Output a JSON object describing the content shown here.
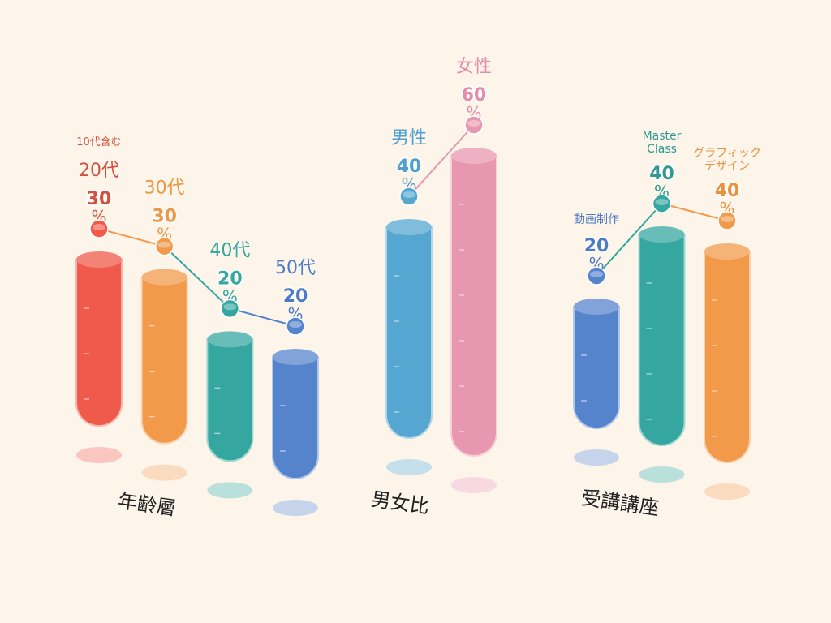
{
  "chart_data": [
    {
      "type": "bar",
      "title": "年齢層",
      "unit": "%",
      "bars": [
        {
          "pre": "10代含む",
          "label": "20代",
          "value": 30,
          "color": "#f05a4a",
          "text_color": "#d0523f"
        },
        {
          "label": "30代",
          "value": 30,
          "color": "#f2994a",
          "text_color": "#e89a48"
        },
        {
          "label": "40代",
          "value": 20,
          "color": "#35a7a0",
          "text_color": "#35a7a0"
        },
        {
          "label": "50代",
          "value": 20,
          "color": "#5584cc",
          "text_color": "#4e7cc4"
        }
      ]
    },
    {
      "type": "bar",
      "title": "男女比",
      "unit": "%",
      "bars": [
        {
          "label": "男性",
          "value": 40,
          "color": "#55a6d0",
          "text_color": "#4f9fd0"
        },
        {
          "label": "女性",
          "value": 60,
          "color": "#e897b0",
          "text_color": "#e48daa"
        }
      ]
    },
    {
      "type": "bar",
      "title": "受講講座",
      "unit": "%",
      "bars": [
        {
          "label": "動画制作",
          "value": 20,
          "color": "#5584cc",
          "text_color": "#4e7cc4"
        },
        {
          "label": "Master\nClass",
          "value": 40,
          "color": "#35a7a0",
          "text_color": "#2f9a93"
        },
        {
          "label": "グラフィック\nデザイン",
          "value": 40,
          "color": "#f2994a",
          "text_color": "#e8923e"
        }
      ]
    }
  ]
}
